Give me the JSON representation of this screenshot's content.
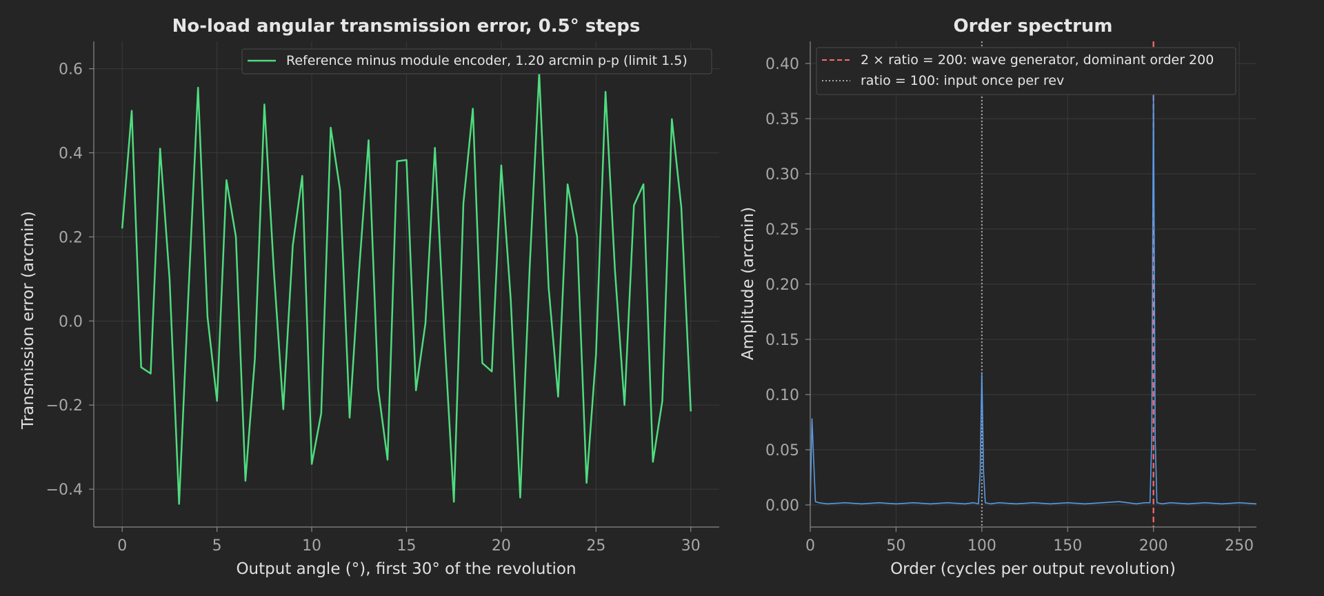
{
  "chart_data": [
    {
      "type": "line",
      "title": "No-load angular transmission error, 0.5° steps",
      "xlabel": "Output angle (°), first 30° of the revolution",
      "ylabel": "Transmission error (arcmin)",
      "xlim": [
        -1.5,
        31.5
      ],
      "ylim": [
        -0.49,
        0.665
      ],
      "xticks": [
        0,
        5,
        10,
        15,
        20,
        25,
        30
      ],
      "yticks": [
        -0.4,
        -0.2,
        0.0,
        0.2,
        0.4,
        0.6
      ],
      "ytick_labels": [
        "−0.4",
        "−0.2",
        "0.0",
        "0.2",
        "0.4",
        "0.6"
      ],
      "grid": true,
      "legend_position": "top-right",
      "series": [
        {
          "name": "Reference minus module encoder, 1.20 arcmin p-p (limit 1.5)",
          "color": "#4fdc7f",
          "x": [
            0,
            0.5,
            1,
            1.5,
            2,
            2.5,
            3,
            3.5,
            4,
            4.5,
            5,
            5.5,
            6,
            6.5,
            7,
            7.5,
            8,
            8.5,
            9,
            9.5,
            10,
            10.5,
            11,
            11.5,
            12,
            12.5,
            13,
            13.5,
            14,
            14.5,
            15,
            15.5,
            16,
            16.5,
            17,
            17.5,
            18,
            18.5,
            19,
            19.5,
            20,
            20.5,
            21,
            21.5,
            22,
            22.5,
            23,
            23.5,
            24,
            24.5,
            25,
            25.5,
            26,
            26.5,
            27,
            27.5,
            28,
            28.5,
            29,
            29.5,
            30
          ],
          "y": [
            0.22,
            0.5,
            -0.11,
            -0.125,
            0.41,
            0.1,
            -0.435,
            0.07,
            0.555,
            0.01,
            -0.19,
            0.335,
            0.2,
            -0.38,
            -0.09,
            0.515,
            0.12,
            -0.21,
            0.18,
            0.345,
            -0.34,
            -0.22,
            0.46,
            0.31,
            -0.23,
            0.12,
            0.43,
            -0.16,
            -0.33,
            0.38,
            0.383,
            -0.165,
            -0.005,
            0.412,
            -0.035,
            -0.43,
            0.28,
            0.505,
            -0.1,
            -0.12,
            0.37,
            0.05,
            -0.42,
            0.13,
            0.59,
            0.08,
            -0.18,
            0.325,
            0.2,
            -0.385,
            -0.08,
            0.545,
            0.12,
            -0.2,
            0.275,
            0.325,
            -0.335,
            -0.19,
            0.48,
            0.27,
            -0.215
          ]
        }
      ]
    },
    {
      "type": "line",
      "title": "Order spectrum",
      "xlabel": "Order (cycles per output revolution)",
      "ylabel": "Amplitude (arcmin)",
      "xlim": [
        0,
        260
      ],
      "ylim": [
        -0.02,
        0.42
      ],
      "xticks": [
        0,
        50,
        100,
        150,
        200,
        250
      ],
      "yticks": [
        0.0,
        0.05,
        0.1,
        0.15,
        0.2,
        0.25,
        0.3,
        0.35,
        0.4
      ],
      "grid": true,
      "legend_position": "top-left",
      "series": [
        {
          "name": "",
          "color": "#5a9be6",
          "x": [
            0,
            1,
            2,
            3,
            5,
            10,
            20,
            30,
            40,
            50,
            60,
            70,
            80,
            90,
            95,
            98,
            99,
            100,
            101,
            102,
            105,
            110,
            120,
            130,
            140,
            150,
            160,
            170,
            180,
            190,
            195,
            198,
            199,
            200,
            201,
            202,
            205,
            210,
            220,
            230,
            240,
            250,
            260
          ],
          "y": [
            0.0,
            0.078,
            0.04,
            0.003,
            0.002,
            0.001,
            0.002,
            0.001,
            0.002,
            0.001,
            0.002,
            0.001,
            0.002,
            0.001,
            0.002,
            0.001,
            0.03,
            0.12,
            0.03,
            0.002,
            0.001,
            0.002,
            0.001,
            0.002,
            0.001,
            0.002,
            0.001,
            0.002,
            0.003,
            0.001,
            0.002,
            0.002,
            0.06,
            0.38,
            0.06,
            0.002,
            0.001,
            0.002,
            0.001,
            0.002,
            0.001,
            0.002,
            0.001
          ]
        }
      ],
      "reference_lines": [
        {
          "x": 200,
          "label": "2 × ratio = 200: wave generator, dominant order 200",
          "color": "#ff6b6b",
          "style": "dashed"
        },
        {
          "x": 100,
          "label": "ratio = 100: input once per rev",
          "color": "#aaaaaa",
          "style": "dotted"
        }
      ]
    }
  ]
}
